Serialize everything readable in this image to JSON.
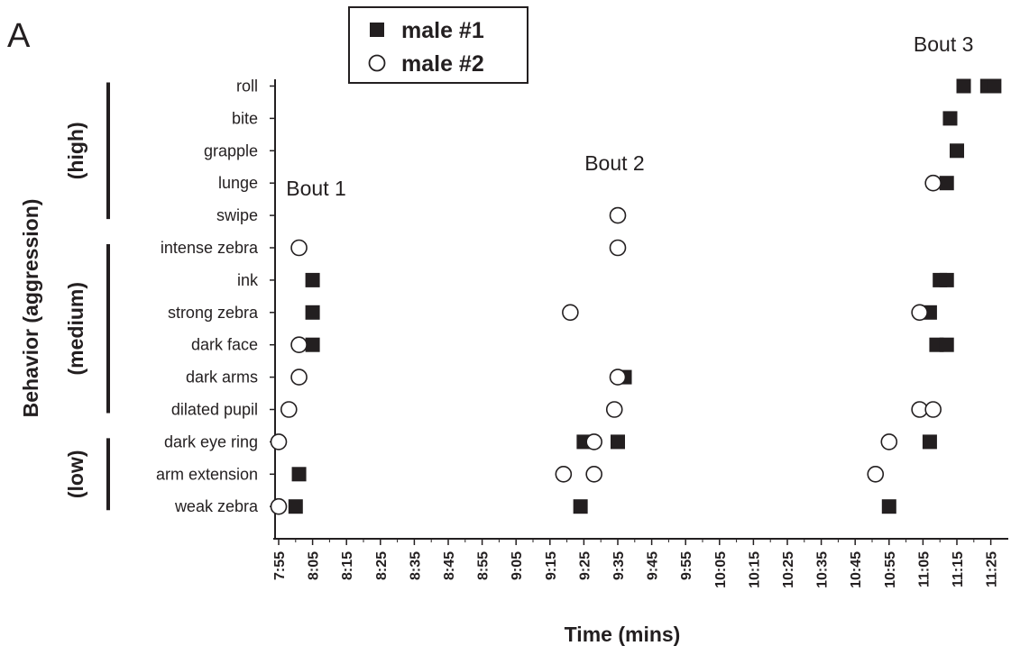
{
  "panel_label": "A",
  "chart_data": {
    "type": "scatter",
    "xlabel": "Time (mins)",
    "ylabel": "Behavior (aggression)",
    "x_ticks": [
      "7:55",
      "8:05",
      "8:15",
      "8:25",
      "8:35",
      "8:45",
      "8:55",
      "9:05",
      "9:15",
      "9:25",
      "9:35",
      "9:45",
      "9:55",
      "10:05",
      "10:15",
      "10:25",
      "10:35",
      "10:45",
      "10:55",
      "11:05",
      "11:15",
      "11:25"
    ],
    "xlim": [
      "7:55",
      "11:27"
    ],
    "behaviors": [
      "roll",
      "bite",
      "grapple",
      "lunge",
      "swipe",
      "intense zebra",
      "ink",
      "strong zebra",
      "dark face",
      "dark arms",
      "dilated pupil",
      "dark eye ring",
      "arm extension",
      "weak zebra"
    ],
    "groups": [
      {
        "label": "(high)",
        "behaviors": [
          "roll",
          "bite",
          "grapple",
          "lunge",
          "swipe"
        ]
      },
      {
        "label": "(medium)",
        "behaviors": [
          "intense zebra",
          "ink",
          "strong zebra",
          "dark face",
          "dark arms",
          "dilated pupil"
        ]
      },
      {
        "label": "(low)",
        "behaviors": [
          "dark eye ring",
          "arm extension",
          "weak zebra"
        ]
      }
    ],
    "annotations": [
      {
        "text": "Bout 1",
        "x": "8:01",
        "behavior": "lunge"
      },
      {
        "text": "Bout 2",
        "x": "9:29",
        "behavior": "grapple"
      },
      {
        "text": "Bout 3",
        "x": "11:06",
        "behavior": "roll"
      }
    ],
    "legend": {
      "placement": "top-center"
    },
    "series": [
      {
        "name": "male #1",
        "marker": "filled-square",
        "color": "#231f20",
        "points": [
          {
            "x": "11:17",
            "behavior": "roll"
          },
          {
            "x": "11:24",
            "behavior": "roll"
          },
          {
            "x": "11:26",
            "behavior": "roll"
          },
          {
            "x": "11:13",
            "behavior": "bite"
          },
          {
            "x": "11:15",
            "behavior": "grapple"
          },
          {
            "x": "11:12",
            "behavior": "lunge"
          },
          {
            "x": "8:05",
            "behavior": "ink"
          },
          {
            "x": "11:10",
            "behavior": "ink"
          },
          {
            "x": "11:12",
            "behavior": "ink"
          },
          {
            "x": "8:05",
            "behavior": "strong zebra"
          },
          {
            "x": "11:07",
            "behavior": "strong zebra"
          },
          {
            "x": "8:05",
            "behavior": "dark face"
          },
          {
            "x": "11:09",
            "behavior": "dark face"
          },
          {
            "x": "11:12",
            "behavior": "dark face"
          },
          {
            "x": "9:37",
            "behavior": "dark arms"
          },
          {
            "x": "9:25",
            "behavior": "dark eye ring"
          },
          {
            "x": "9:35",
            "behavior": "dark eye ring"
          },
          {
            "x": "11:07",
            "behavior": "dark eye ring"
          },
          {
            "x": "8:01",
            "behavior": "arm extension"
          },
          {
            "x": "8:00",
            "behavior": "weak zebra"
          },
          {
            "x": "9:24",
            "behavior": "weak zebra"
          },
          {
            "x": "10:55",
            "behavior": "weak zebra"
          }
        ]
      },
      {
        "name": "male #2",
        "marker": "open-circle",
        "color": "#231f20",
        "points": [
          {
            "x": "11:08",
            "behavior": "lunge"
          },
          {
            "x": "9:35",
            "behavior": "swipe"
          },
          {
            "x": "8:01",
            "behavior": "intense zebra"
          },
          {
            "x": "9:35",
            "behavior": "intense zebra"
          },
          {
            "x": "9:21",
            "behavior": "strong zebra"
          },
          {
            "x": "11:04",
            "behavior": "strong zebra"
          },
          {
            "x": "8:01",
            "behavior": "dark face"
          },
          {
            "x": "8:01",
            "behavior": "dark arms"
          },
          {
            "x": "9:35",
            "behavior": "dark arms"
          },
          {
            "x": "7:58",
            "behavior": "dilated pupil"
          },
          {
            "x": "9:34",
            "behavior": "dilated pupil"
          },
          {
            "x": "11:04",
            "behavior": "dilated pupil"
          },
          {
            "x": "11:08",
            "behavior": "dilated pupil"
          },
          {
            "x": "7:55",
            "behavior": "dark eye ring"
          },
          {
            "x": "9:28",
            "behavior": "dark eye ring"
          },
          {
            "x": "10:55",
            "behavior": "dark eye ring"
          },
          {
            "x": "9:19",
            "behavior": "arm extension"
          },
          {
            "x": "9:28",
            "behavior": "arm extension"
          },
          {
            "x": "10:51",
            "behavior": "arm extension"
          },
          {
            "x": "7:55",
            "behavior": "weak zebra"
          }
        ]
      }
    ]
  }
}
